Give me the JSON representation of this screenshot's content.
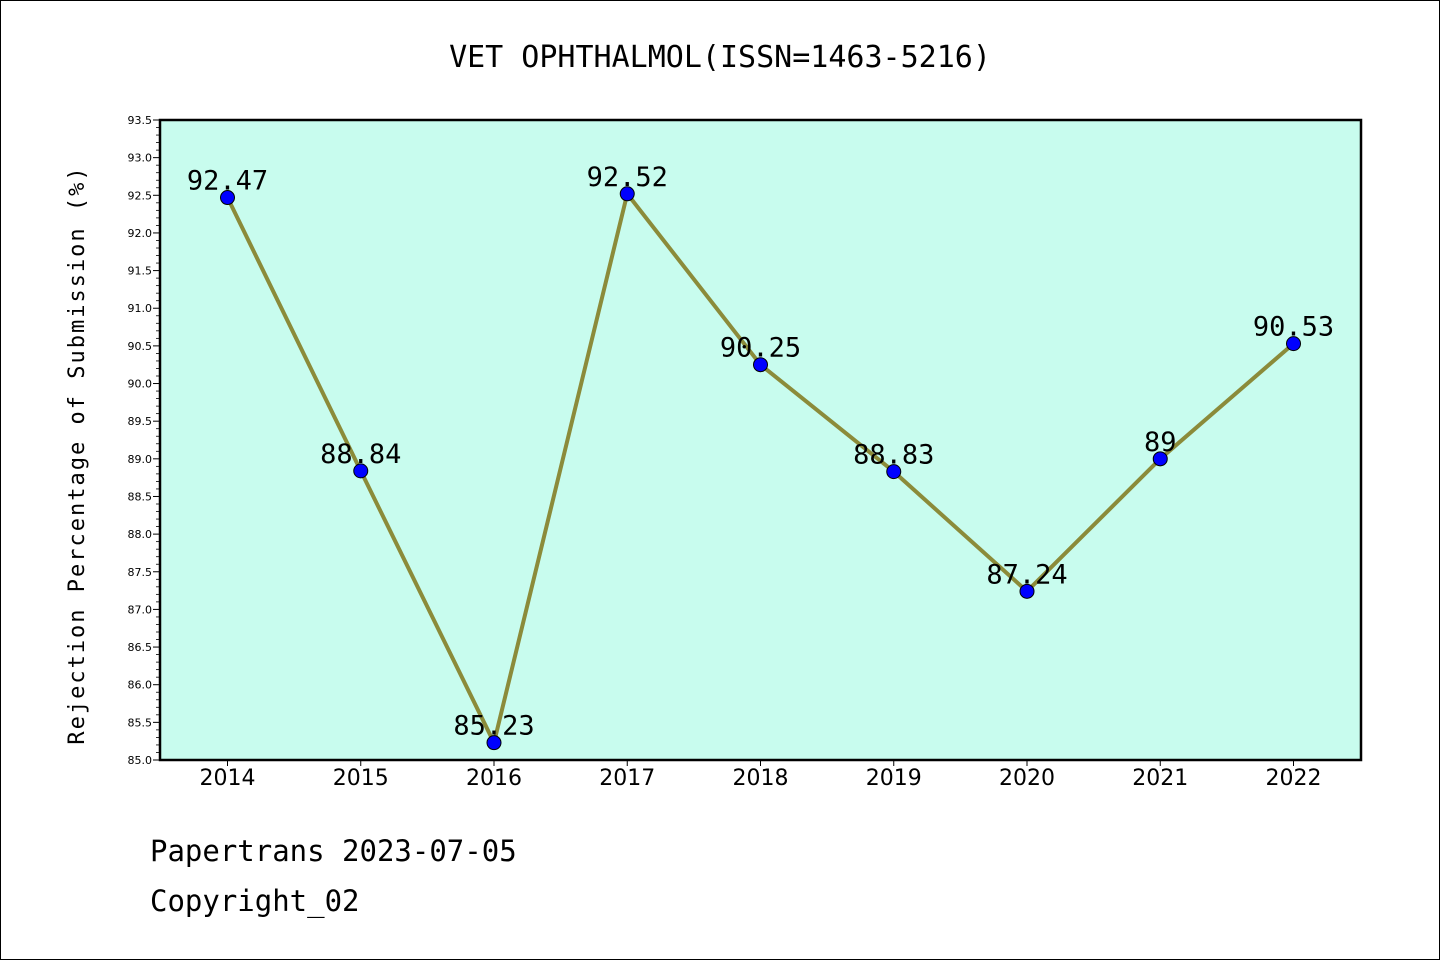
{
  "chart_data": {
    "type": "line",
    "title": "VET OPHTHALMOL(ISSN=1463-5216)",
    "xlabel": "",
    "ylabel": "Rejection Percentage of Submission (%)",
    "categories": [
      "2014",
      "2015",
      "2016",
      "2017",
      "2018",
      "2019",
      "2020",
      "2021",
      "2022"
    ],
    "series": [
      {
        "values": [
          92.47,
          88.84,
          85.23,
          92.52,
          90.25,
          88.83,
          87.24,
          89,
          90.53
        ],
        "labels": [
          "92.47",
          "88.84",
          "85.23",
          "92.52",
          "90.25",
          "88.83",
          "87.24",
          "89",
          "90.53"
        ]
      }
    ],
    "ylim": [
      85.0,
      93.5
    ],
    "yticks": [
      "85.0",
      "85.5",
      "86.0",
      "86.5",
      "87.0",
      "87.5",
      "88.0",
      "88.5",
      "89.0",
      "89.5",
      "90.0",
      "90.5",
      "91.0",
      "91.5",
      "92.0",
      "92.5",
      "93.0",
      "93.5"
    ],
    "grid": false,
    "colors": {
      "plot_background": "#c8fcee",
      "line": "#8b8b3a",
      "marker": "#0000ff"
    }
  },
  "footer": {
    "line1": "Papertrans 2023-07-05",
    "line2": "Copyright_02"
  }
}
